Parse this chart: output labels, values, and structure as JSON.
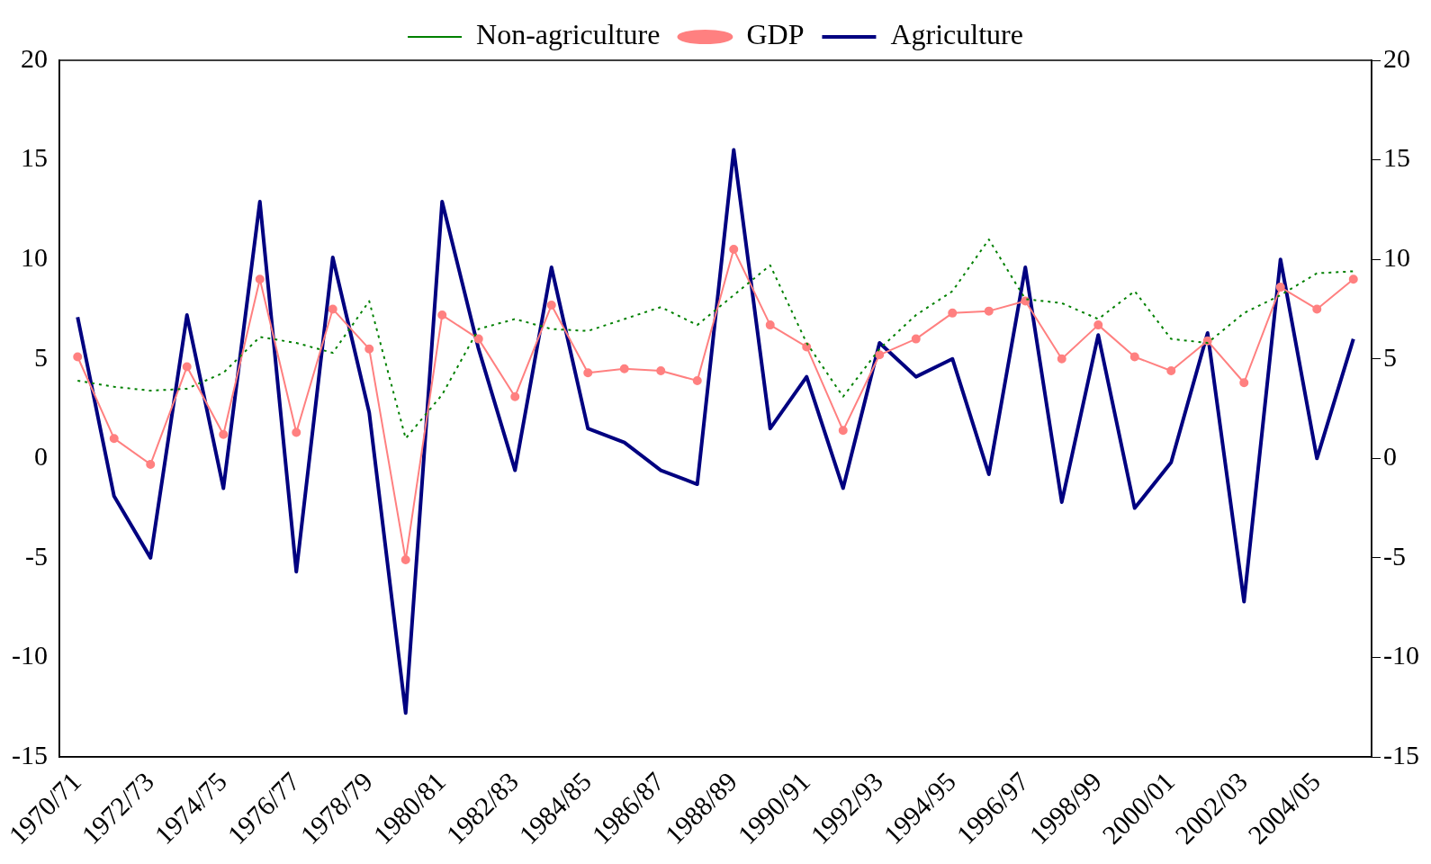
{
  "chart_data": {
    "type": "line",
    "categories": [
      "1970/71",
      null,
      "1972/73",
      null,
      "1974/75",
      null,
      "1976/77",
      null,
      "1978/79",
      null,
      "1980/81",
      null,
      "1982/83",
      null,
      "1984/85",
      null,
      "1986/87",
      null,
      "1988/89",
      null,
      "1990/91",
      null,
      "1992/93",
      null,
      "1994/95",
      null,
      "1996/97",
      null,
      "1998/99",
      null,
      "2000/01",
      null,
      "2002/03",
      null,
      "2004/05",
      null
    ],
    "series": [
      {
        "name": "Non-agriculture",
        "color": "#008000",
        "line_style": "dotted",
        "marker": "none",
        "values": [
          3.9,
          3.6,
          3.4,
          3.5,
          4.3,
          6.1,
          5.8,
          5.3,
          7.9,
          1.0,
          3.2,
          6.5,
          7.0,
          6.5,
          6.4,
          7.0,
          7.6,
          6.7,
          8.2,
          9.7,
          5.8,
          3.1,
          5.5,
          7.2,
          8.4,
          11.0,
          8.0,
          7.8,
          7.0,
          8.4,
          6.0,
          5.8,
          7.3,
          8.2,
          9.3,
          9.4
        ]
      },
      {
        "name": "GDP",
        "color": "#ff8080",
        "line_style": "solid",
        "marker": "circle",
        "values": [
          5.1,
          1.0,
          -0.3,
          4.6,
          1.2,
          9.0,
          1.3,
          7.5,
          5.5,
          -5.1,
          7.2,
          6.0,
          3.1,
          7.7,
          4.3,
          4.5,
          4.4,
          3.9,
          10.5,
          6.7,
          5.6,
          1.4,
          5.2,
          6.0,
          7.3,
          7.4,
          7.9,
          5.0,
          6.7,
          5.1,
          4.4,
          5.9,
          3.8,
          8.6,
          7.5,
          9.0
        ]
      },
      {
        "name": "Agriculture",
        "color": "#000080",
        "line_style": "solid",
        "marker": "none",
        "values": [
          7.1,
          -1.9,
          -5.0,
          7.2,
          -1.5,
          12.9,
          -5.7,
          10.1,
          2.3,
          -12.8,
          12.9,
          5.5,
          -0.6,
          9.6,
          1.5,
          0.8,
          -0.6,
          -1.3,
          15.5,
          1.5,
          4.1,
          -1.5,
          5.8,
          4.1,
          5.0,
          -0.8,
          9.6,
          -2.2,
          6.2,
          -2.5,
          -0.2,
          6.3,
          -7.2,
          10.0,
          0.0,
          6.0
        ]
      }
    ],
    "ylim": [
      -15,
      20
    ],
    "yticks": [
      -15,
      -10,
      -5,
      0,
      5,
      10,
      15,
      20
    ],
    "y2lim": [
      -15,
      20
    ],
    "y2ticks": [
      -15,
      -10,
      -5,
      0,
      5,
      10,
      15,
      20
    ],
    "grid": false,
    "legend": "top"
  }
}
